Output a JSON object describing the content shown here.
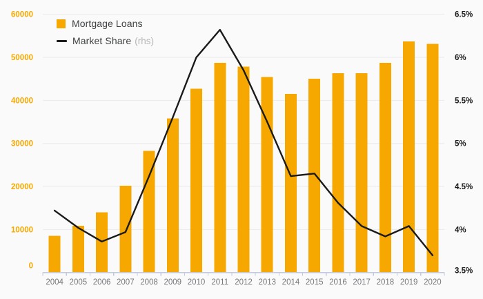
{
  "chart_data": {
    "type": "bar",
    "combo": "bar+line",
    "title": "",
    "categories": [
      "2004",
      "2005",
      "2006",
      "2007",
      "2008",
      "2009",
      "2010",
      "2011",
      "2012",
      "2013",
      "2014",
      "2015",
      "2016",
      "2017",
      "2018",
      "2019",
      "2020"
    ],
    "series": [
      {
        "name": "Mortgage Loans",
        "type": "bar",
        "axis": "left",
        "values": [
          8500,
          10900,
          14000,
          20200,
          28300,
          35800,
          42700,
          48700,
          47800,
          45400,
          41500,
          45000,
          46300,
          46300,
          48700,
          53700,
          53100
        ]
      },
      {
        "name": "Market Share",
        "note": "(rhs)",
        "type": "line",
        "axis": "right",
        "values": [
          4.22,
          4.02,
          3.86,
          3.97,
          4.62,
          5.3,
          6.0,
          6.32,
          5.85,
          5.25,
          4.62,
          4.65,
          4.31,
          4.04,
          3.92,
          4.04,
          3.7
        ]
      }
    ],
    "left_axis": {
      "min": 0,
      "max": 60000,
      "step": 10000,
      "tick_labels": [
        "0",
        "10000",
        "20000",
        "30000",
        "40000",
        "50000",
        "60000"
      ]
    },
    "right_axis": {
      "min": 3.5,
      "max": 6.5,
      "step": 0.5,
      "tick_labels": [
        "3.5%",
        "4%",
        "4.5%",
        "5%",
        "5.5%",
        "6%",
        "6.5%"
      ]
    },
    "grid": "horizontal",
    "legend_position": "top-left"
  },
  "legend": {
    "items": [
      {
        "label": "Mortgage Loans",
        "note": "",
        "swatch": "square"
      },
      {
        "label": "Market Share",
        "note": "(rhs)",
        "swatch": "line"
      }
    ]
  },
  "colors": {
    "background": "#FAFAFA",
    "bar": "#F6A800",
    "line": "#1A1A1A",
    "grid": "#EAEAEA",
    "axis": "#C3CAE0",
    "left_label": "#F6A800",
    "right_label": "#1A1A1A",
    "year_label": "#77787B"
  }
}
